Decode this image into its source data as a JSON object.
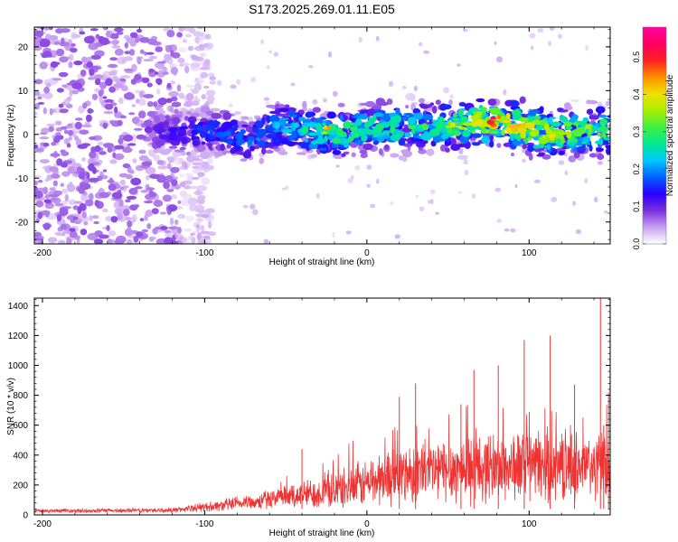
{
  "title": "S173.2025.269.01.11.E05",
  "chart_data": [
    {
      "type": "heatmap",
      "xlabel": "Height of straight line (km)",
      "ylabel": "Frequency (Hz)",
      "xlim": [
        -205,
        150
      ],
      "ylim": [
        -25,
        24.5
      ],
      "xticks": [
        -200,
        -100,
        0,
        100
      ],
      "yticks": [
        -20,
        -10,
        0,
        10,
        20
      ],
      "colorbar": {
        "label": "Normalized spectral amplitude",
        "range": [
          0,
          0.58
        ],
        "ticks": [
          0.0,
          0.1,
          0.2,
          0.3,
          0.4,
          0.5
        ],
        "tick_labels": [
          "0.0",
          "0.1",
          "0.2",
          "0.3",
          "0.4",
          "0.5"
        ],
        "colors": [
          "#ffffff",
          "#c8a0f0",
          "#7a2ee0",
          "#2a00ff",
          "#0060ff",
          "#00c8ff",
          "#00e890",
          "#40f040",
          "#a8f000",
          "#f0e000",
          "#ff9000",
          "#ff2020",
          "#ff0060",
          "#ff00a0"
        ]
      },
      "noise_region": {
        "x_range": [
          -205,
          -115
        ],
        "amplitude": 0.07
      },
      "signal_band": {
        "center_freq": [
          {
            "x": -130,
            "f": 0.5
          },
          {
            "x": -90,
            "f": 0.5
          },
          {
            "x": -75,
            "f": -1
          },
          {
            "x": -50,
            "f": 2
          },
          {
            "x": -35,
            "f": 0.5
          },
          {
            "x": -20,
            "f": 0
          },
          {
            "x": 0,
            "f": 1.5
          },
          {
            "x": 50,
            "f": 2
          },
          {
            "x": 80,
            "f": 3
          },
          {
            "x": 110,
            "f": 0.5
          },
          {
            "x": 150,
            "f": 1
          }
        ],
        "width_hz": 5,
        "peak_amplitude": [
          {
            "x": -130,
            "a": 0.1
          },
          {
            "x": -100,
            "a": 0.16
          },
          {
            "x": -60,
            "a": 0.2
          },
          {
            "x": -20,
            "a": 0.3
          },
          {
            "x": 40,
            "a": 0.28
          },
          {
            "x": 80,
            "a": 0.42
          },
          {
            "x": 120,
            "a": 0.35
          },
          {
            "x": 150,
            "a": 0.3
          }
        ],
        "hot_spots": [
          {
            "x": -25,
            "f": 1,
            "a": 0.45
          },
          {
            "x": 52,
            "f": 2,
            "a": 0.4
          },
          {
            "x": 76,
            "f": 3,
            "a": 0.55
          },
          {
            "x": 80,
            "f": 3,
            "a": 0.5
          },
          {
            "x": 113,
            "f": -1,
            "a": 0.42
          },
          {
            "x": 138,
            "f": 1,
            "a": 0.4
          }
        ]
      }
    },
    {
      "type": "line",
      "xlabel": "Height of straight line (km)",
      "ylabel": "SNR (10 * v/v)",
      "xlim": [
        -205,
        150
      ],
      "ylim": [
        0,
        1450
      ],
      "xticks": [
        -200,
        -100,
        0,
        100
      ],
      "yticks": [
        0,
        200,
        400,
        600,
        800,
        1000,
        1200,
        1400
      ],
      "color": "#ee3333",
      "envelope": [
        {
          "x": -205,
          "base": 25,
          "spread": 20
        },
        {
          "x": -120,
          "base": 30,
          "spread": 25
        },
        {
          "x": -90,
          "base": 60,
          "spread": 60
        },
        {
          "x": -50,
          "base": 110,
          "spread": 120
        },
        {
          "x": -10,
          "base": 170,
          "spread": 220
        },
        {
          "x": 20,
          "base": 260,
          "spread": 320
        },
        {
          "x": 60,
          "base": 290,
          "spread": 360
        },
        {
          "x": 100,
          "base": 310,
          "spread": 380
        },
        {
          "x": 150,
          "base": 300,
          "spread": 360
        }
      ],
      "spikes": [
        {
          "x": -40,
          "y": 440
        },
        {
          "x": 20,
          "y": 790
        },
        {
          "x": 30,
          "y": 880
        },
        {
          "x": 58,
          "y": 740
        },
        {
          "x": 66,
          "y": 970
        },
        {
          "x": 81,
          "y": 1000
        },
        {
          "x": 97,
          "y": 1170
        },
        {
          "x": 113,
          "y": 1200
        },
        {
          "x": 128,
          "y": 870
        },
        {
          "x": 144,
          "y": 1450
        },
        {
          "x": 146,
          "y": 600
        },
        {
          "x": 149,
          "y": 820
        }
      ]
    }
  ]
}
